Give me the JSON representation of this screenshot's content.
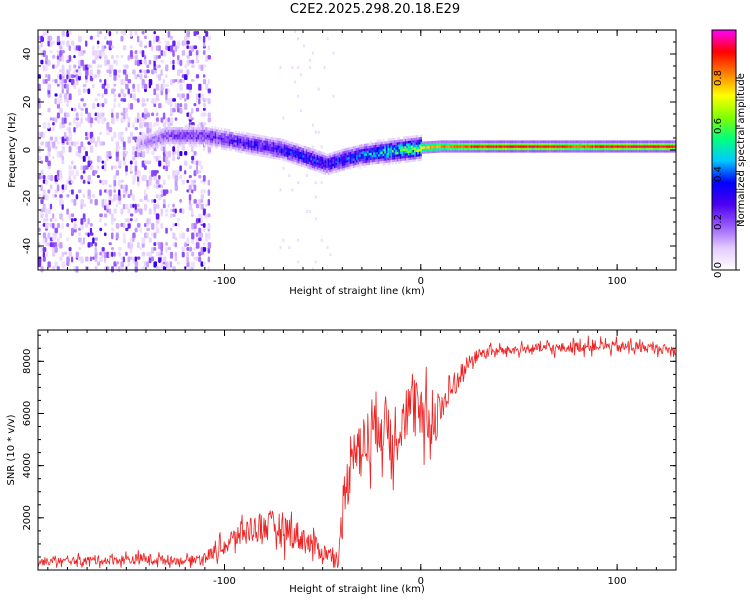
{
  "title": "C2E2.2025.298.20.18.E29",
  "chart_data": [
    {
      "type": "heatmap",
      "name": "spectrogram",
      "xlabel": "Height of straight line (km)",
      "ylabel": "Frequency (Hz)",
      "xlim": [
        -195,
        130
      ],
      "ylim": [
        -50,
        50
      ],
      "x_ticks": [
        -100,
        0,
        100
      ],
      "x_tick_labels": [
        "-100",
        "0",
        "100"
      ],
      "y_ticks": [
        -40,
        -20,
        0,
        20,
        40
      ],
      "y_tick_labels": [
        "-40",
        "-20",
        "0",
        "20",
        "40"
      ],
      "colorbar": {
        "label": "Normalized spectral amplitude",
        "range": [
          0,
          1
        ],
        "ticks": [
          0.0,
          0.2,
          0.4,
          0.6,
          0.8
        ],
        "tick_labels": [
          "0.0",
          "0.2",
          "0.4",
          "0.6",
          "0.8"
        ],
        "colormap": [
          "#ffffff",
          "#e3ccff",
          "#9a5cff",
          "#4b00ee",
          "#0000ff",
          "#00c8ff",
          "#00ff80",
          "#80ff00",
          "#ffff00",
          "#ff8000",
          "#ff0000",
          "#ff00ff"
        ]
      },
      "ridge": {
        "x": [
          -145,
          -130,
          -110,
          -90,
          -70,
          -55,
          -48,
          -40,
          -30,
          -20,
          -10,
          0,
          10,
          20,
          40,
          60,
          80,
          100,
          130
        ],
        "freq": [
          2,
          6,
          6,
          3,
          0,
          -4,
          -6,
          -4,
          -2,
          -1,
          0,
          1,
          1.5,
          1.5,
          1.5,
          1.5,
          1.5,
          1.5,
          1.5
        ],
        "amplitude": [
          0.15,
          0.25,
          0.3,
          0.35,
          0.4,
          0.45,
          0.4,
          0.45,
          0.5,
          0.6,
          0.7,
          0.8,
          0.85,
          0.9,
          0.95,
          0.95,
          0.9,
          0.95,
          0.95
        ]
      }
    },
    {
      "type": "line",
      "name": "snr",
      "xlabel": "Height of straight line (km)",
      "ylabel": "SNR (10 * v/v)",
      "xlim": [
        -195,
        130
      ],
      "ylim": [
        0,
        9200
      ],
      "x_ticks": [
        -100,
        0,
        100
      ],
      "x_tick_labels": [
        "-100",
        "0",
        "100"
      ],
      "y_ticks": [
        2000,
        4000,
        6000,
        8000
      ],
      "y_tick_labels": [
        "2000",
        "4000",
        "6000",
        "8000"
      ],
      "series": [
        {
          "name": "SNR",
          "color": "#ee2222",
          "x": [
            -195,
            -180,
            -160,
            -140,
            -120,
            -110,
            -100,
            -90,
            -80,
            -70,
            -60,
            -50,
            -42,
            -38,
            -34,
            -30,
            -25,
            -20,
            -15,
            -10,
            -5,
            0,
            5,
            10,
            15,
            20,
            25,
            30,
            40,
            50,
            60,
            70,
            80,
            90,
            100,
            110,
            120,
            130
          ],
          "values": [
            300,
            350,
            380,
            420,
            350,
            500,
            900,
            1500,
            1700,
            1600,
            1200,
            700,
            500,
            3000,
            5200,
            4500,
            5500,
            5800,
            5000,
            6000,
            6200,
            5800,
            5600,
            6200,
            6800,
            7500,
            8000,
            8300,
            8400,
            8450,
            8500,
            8500,
            8550,
            8600,
            8550,
            8550,
            8500,
            8400
          ],
          "noise": [
            200,
            200,
            250,
            300,
            200,
            300,
            500,
            700,
            900,
            900,
            800,
            500,
            300,
            1500,
            1800,
            1800,
            1800,
            1800,
            1700,
            1700,
            1500,
            1600,
            1500,
            1400,
            1000,
            600,
            400,
            300,
            250,
            250,
            250,
            300,
            300,
            300,
            300,
            300,
            250,
            250
          ]
        }
      ]
    }
  ]
}
